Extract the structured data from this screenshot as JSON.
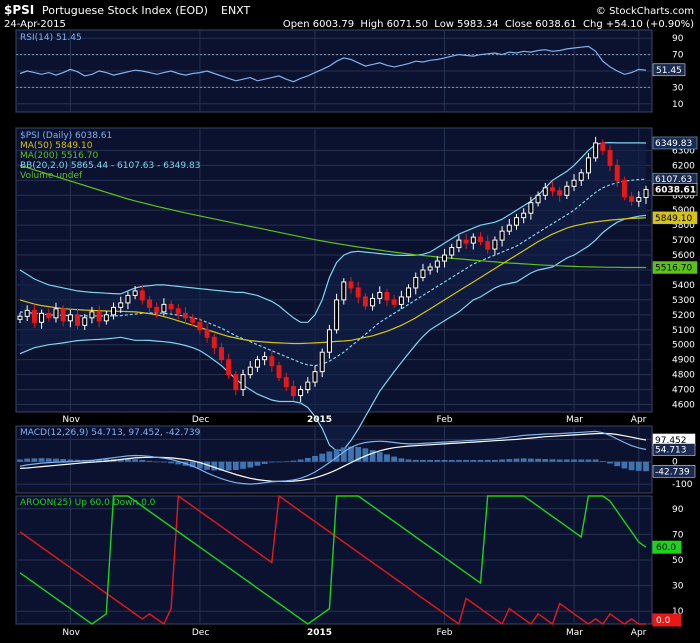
{
  "header": {
    "symbol": "$PSI",
    "name": "Portuguese Stock Index (EOD)",
    "exchange": "ENXT",
    "date": "24-Apr-2015",
    "quote": "Open 6003.79  High 6071.50  Low 5983.34  Close 6038.61  Chg +54.10 (+0.90%)",
    "quote_arrow": "▲",
    "watermark": "© StockCharts.com"
  },
  "colors": {
    "background": "#000000",
    "panel_shade": "#0b1230",
    "grid": "#26324f",
    "up_candle": "#ffffff",
    "down_candle": "#e81818",
    "ma50": "#d6c21a",
    "ma200": "#5cc21a",
    "bollinger": "#7fd6ee",
    "bb_mid": "#7fd6ee",
    "rsi": "#7fb2ef",
    "macd": "#7fb2ef",
    "signal": "#ffffff",
    "aroon_up": "#1bd41b",
    "aroon_down": "#e81818"
  },
  "chart_data": [
    {
      "type": "line",
      "panel": "rsi",
      "legend": "RSI(14) 51.45",
      "ylim": [
        0,
        100
      ],
      "y_ticks": [
        10,
        30,
        50,
        70,
        90
      ],
      "reference_lines": [
        30,
        70
      ],
      "last_value_label": "51.45",
      "series": [
        {
          "name": "RSI(14)",
          "values": [
            47,
            50,
            48,
            46,
            48,
            45,
            48,
            52,
            49,
            44,
            46,
            50,
            48,
            45,
            47,
            49,
            51,
            50,
            48,
            46,
            48,
            50,
            47,
            45,
            47,
            48,
            50,
            47,
            44,
            41,
            38,
            40,
            42,
            38,
            40,
            42,
            44,
            40,
            37,
            41,
            44,
            48,
            52,
            56,
            62,
            66,
            64,
            60,
            56,
            58,
            60,
            57,
            55,
            57,
            59,
            62,
            61,
            63,
            64,
            66,
            68,
            70,
            69,
            68,
            70,
            71,
            72,
            70,
            73,
            72,
            74,
            73,
            75,
            76,
            74,
            75,
            77,
            78,
            79,
            80,
            74,
            62,
            55,
            50,
            46,
            48,
            52,
            51
          ]
        }
      ]
    },
    {
      "type": "candlestick",
      "panel": "price",
      "title": "$PSI Portuguese Stock Index (EOD) ENXT",
      "legend": [
        "$PSI (Daily) 6038.61",
        "MA(50) 5849.10",
        "MA(200) 5516.70",
        "BB(20,2.0) 5865.44 - 6107.63 - 6349.83",
        "Volume undef"
      ],
      "ylim": [
        4550,
        6450
      ],
      "y_ticks": [
        4600,
        4700,
        4800,
        4900,
        5000,
        5100,
        5200,
        5300,
        5400,
        5500,
        5600,
        5700,
        5800,
        5900,
        6000,
        6100,
        6200,
        6300
      ],
      "x_labels": [
        "Nov",
        "Dec",
        "2015",
        "Feb",
        "Mar",
        "Apr"
      ],
      "last_value_labels": {
        "close": "6038.61",
        "bb_upper": "6349.83",
        "bb_mid": "6107.63",
        "ma50": "5849.10",
        "ma200": "5516.70"
      },
      "closes": [
        5190,
        5230,
        5150,
        5210,
        5180,
        5240,
        5160,
        5200,
        5130,
        5180,
        5220,
        5160,
        5200,
        5250,
        5280,
        5330,
        5360,
        5300,
        5250,
        5220,
        5270,
        5240,
        5210,
        5180,
        5150,
        5100,
        5050,
        4980,
        4900,
        4800,
        4700,
        4800,
        4850,
        4900,
        4920,
        4860,
        4780,
        4720,
        4660,
        4700,
        4750,
        4820,
        4950,
        5100,
        5300,
        5420,
        5380,
        5320,
        5260,
        5310,
        5350,
        5300,
        5270,
        5320,
        5380,
        5450,
        5500,
        5520,
        5560,
        5600,
        5650,
        5700,
        5680,
        5720,
        5690,
        5640,
        5700,
        5760,
        5800,
        5850,
        5880,
        5950,
        6000,
        6050,
        6030,
        6000,
        6060,
        6100,
        6150,
        6250,
        6350,
        6300,
        6200,
        6100,
        5990,
        5960,
        5985,
        6038.61
      ],
      "ma50": [
        5300,
        5285,
        5272,
        5262,
        5255,
        5248,
        5242,
        5238,
        5235,
        5232,
        5230,
        5228,
        5226,
        5225,
        5224,
        5222,
        5220,
        5215,
        5208,
        5200,
        5188,
        5175,
        5160,
        5145,
        5130,
        5115,
        5100,
        5085,
        5070,
        5055,
        5045,
        5035,
        5028,
        5022,
        5018,
        5015,
        5012,
        5010,
        5008,
        5008,
        5010,
        5012,
        5015,
        5018,
        5022,
        5025,
        5030,
        5040,
        5050,
        5060,
        5075,
        5090,
        5110,
        5130,
        5155,
        5180,
        5210,
        5240,
        5270,
        5300,
        5330,
        5360,
        5390,
        5420,
        5450,
        5480,
        5510,
        5540,
        5570,
        5600,
        5630,
        5660,
        5690,
        5715,
        5740,
        5760,
        5780,
        5795,
        5805,
        5815,
        5822,
        5828,
        5834,
        5838,
        5842,
        5845,
        5847,
        5849.1
      ],
      "ma200": [
        6200,
        6185,
        6170,
        6155,
        6140,
        6125,
        6110,
        6095,
        6080,
        6065,
        6050,
        6035,
        6020,
        6005,
        5990,
        5975,
        5962,
        5950,
        5938,
        5926,
        5915,
        5904,
        5893,
        5882,
        5872,
        5862,
        5852,
        5842,
        5832,
        5822,
        5812,
        5802,
        5792,
        5782,
        5772,
        5762,
        5752,
        5742,
        5732,
        5722,
        5712,
        5703,
        5694,
        5685,
        5677,
        5669,
        5661,
        5654,
        5647,
        5640,
        5633,
        5626,
        5620,
        5614,
        5608,
        5602,
        5597,
        5592,
        5587,
        5582,
        5578,
        5574,
        5570,
        5566,
        5562,
        5558,
        5554,
        5550,
        5547,
        5544,
        5541,
        5538,
        5535,
        5532,
        5530,
        5528,
        5526,
        5524,
        5522,
        5521,
        5520,
        5519,
        5518,
        5518,
        5517,
        5517,
        5516.8,
        5516.7
      ],
      "bb_upper": [
        5500,
        5470,
        5440,
        5420,
        5400,
        5390,
        5380,
        5370,
        5360,
        5355,
        5350,
        5348,
        5345,
        5342,
        5340,
        5360,
        5380,
        5390,
        5395,
        5400,
        5400,
        5395,
        5390,
        5385,
        5380,
        5375,
        5370,
        5365,
        5360,
        5355,
        5350,
        5350,
        5340,
        5330,
        5310,
        5290,
        5260,
        5220,
        5180,
        5150,
        5150,
        5200,
        5300,
        5450,
        5550,
        5600,
        5620,
        5625,
        5620,
        5615,
        5610,
        5605,
        5600,
        5598,
        5598,
        5600,
        5605,
        5620,
        5650,
        5680,
        5710,
        5740,
        5760,
        5780,
        5800,
        5810,
        5820,
        5840,
        5870,
        5900,
        5930,
        5960,
        6000,
        6050,
        6100,
        6130,
        6160,
        6200,
        6250,
        6300,
        6340,
        6350,
        6352,
        6350,
        6350,
        6350,
        6350,
        6349.83
      ],
      "bb_mid": [
        5220,
        5215,
        5210,
        5205,
        5200,
        5198,
        5196,
        5195,
        5194,
        5193,
        5192,
        5192,
        5192,
        5193,
        5195,
        5200,
        5205,
        5210,
        5212,
        5212,
        5210,
        5205,
        5198,
        5190,
        5180,
        5168,
        5150,
        5130,
        5110,
        5085,
        5060,
        5040,
        5020,
        5000,
        4980,
        4960,
        4940,
        4920,
        4900,
        4880,
        4865,
        4860,
        4870,
        4890,
        4920,
        4950,
        4990,
        5030,
        5070,
        5110,
        5150,
        5180,
        5210,
        5240,
        5270,
        5300,
        5330,
        5360,
        5390,
        5420,
        5450,
        5480,
        5510,
        5540,
        5560,
        5580,
        5600,
        5620,
        5640,
        5660,
        5690,
        5720,
        5750,
        5780,
        5810,
        5840,
        5870,
        5900,
        5940,
        5980,
        6020,
        6050,
        6070,
        6085,
        6095,
        6100,
        6105,
        6107.63
      ],
      "bb_lower": [
        4940,
        4960,
        4980,
        4990,
        5000,
        5006,
        5012,
        5020,
        5028,
        5031,
        5034,
        5036,
        5039,
        5044,
        5050,
        5040,
        5030,
        5030,
        5029,
        5024,
        5020,
        5015,
        5006,
        4995,
        4980,
        4961,
        4930,
        4895,
        4860,
        4815,
        4770,
        4730,
        4700,
        4670,
        4650,
        4630,
        4620,
        4620,
        4620,
        4610,
        4580,
        4520,
        4440,
        4330,
        4290,
        4300,
        4360,
        4435,
        4520,
        4605,
        4690,
        4755,
        4820,
        4882,
        4942,
        5000,
        5055,
        5100,
        5130,
        5160,
        5190,
        5220,
        5260,
        5300,
        5320,
        5350,
        5380,
        5400,
        5410,
        5420,
        5450,
        5480,
        5500,
        5510,
        5520,
        5550,
        5580,
        5600,
        5630,
        5660,
        5700,
        5750,
        5788,
        5820,
        5840,
        5850,
        5860,
        5865.44
      ]
    },
    {
      "type": "line",
      "panel": "macd",
      "legend": "MACD(12,26,9) 54.713, 97.452, -42.739",
      "ylim": [
        -140,
        160
      ],
      "y_ticks": [
        -100,
        0,
        100
      ],
      "last_value_labels": {
        "macd": "54.713",
        "signal": "97.452",
        "histogram": "-42.739"
      },
      "series": [
        {
          "name": "MACD",
          "values": [
            -20,
            -14,
            -10,
            -6,
            -4,
            -2,
            -1,
            0,
            2,
            4,
            6,
            10,
            14,
            18,
            22,
            26,
            28,
            27,
            24,
            20,
            16,
            10,
            2,
            -8,
            -20,
            -34,
            -50,
            -64,
            -76,
            -86,
            -94,
            -98,
            -100,
            -98,
            -94,
            -90,
            -88,
            -86,
            -82,
            -74,
            -62,
            -46,
            -26,
            -4,
            20,
            44,
            64,
            78,
            86,
            90,
            92,
            90,
            86,
            82,
            80,
            80,
            82,
            84,
            86,
            88,
            90,
            92,
            94,
            96,
            98,
            100,
            102,
            106,
            110,
            114,
            118,
            120,
            122,
            124,
            125,
            126,
            128,
            130,
            132,
            134,
            136,
            130,
            118,
            102,
            86,
            72,
            62,
            54.713
          ]
        },
        {
          "name": "Signal",
          "values": [
            -30,
            -28,
            -25,
            -22,
            -19,
            -16,
            -13,
            -10,
            -7,
            -4,
            -2,
            0,
            3,
            6,
            10,
            14,
            17,
            19,
            20,
            20,
            19,
            17,
            14,
            10,
            4,
            -4,
            -14,
            -25,
            -36,
            -47,
            -57,
            -66,
            -74,
            -80,
            -84,
            -87,
            -88,
            -88,
            -87,
            -84,
            -79,
            -72,
            -62,
            -50,
            -36,
            -20,
            -4,
            12,
            26,
            38,
            49,
            57,
            63,
            67,
            70,
            72,
            74,
            76,
            78,
            80,
            82,
            84,
            86,
            88,
            90,
            92,
            94,
            96,
            98,
            100,
            103,
            106,
            109,
            112,
            114,
            116,
            118,
            120,
            122,
            124,
            126,
            127,
            126,
            122,
            116,
            110,
            103,
            97.452
          ]
        }
      ]
    },
    {
      "type": "line",
      "panel": "aroon",
      "legend": "AROON(25) Up 60.0 Down 0.0",
      "ylim": [
        0,
        100
      ],
      "y_ticks": [
        10,
        30,
        50,
        70,
        90
      ],
      "last_value_labels": {
        "up": "60.0",
        "down": "0.0"
      },
      "series": [
        {
          "name": "Up",
          "values": [
            40,
            36,
            32,
            28,
            24,
            20,
            16,
            12,
            8,
            4,
            0,
            4,
            8,
            100,
            100,
            100,
            96,
            92,
            88,
            84,
            80,
            76,
            72,
            68,
            64,
            60,
            56,
            52,
            48,
            44,
            40,
            36,
            32,
            28,
            24,
            20,
            16,
            12,
            8,
            4,
            0,
            4,
            8,
            12,
            100,
            100,
            100,
            100,
            96,
            92,
            88,
            84,
            80,
            76,
            72,
            68,
            64,
            60,
            56,
            52,
            48,
            44,
            40,
            36,
            32,
            100,
            100,
            100,
            100,
            100,
            100,
            96,
            92,
            88,
            84,
            80,
            76,
            72,
            68,
            100,
            100,
            100,
            96,
            88,
            80,
            72,
            64,
            60
          ]
        },
        {
          "name": "Down",
          "values": [
            72,
            68,
            64,
            60,
            56,
            52,
            48,
            44,
            40,
            36,
            32,
            28,
            24,
            20,
            16,
            12,
            8,
            4,
            8,
            4,
            0,
            12,
            100,
            96,
            92,
            88,
            84,
            80,
            76,
            72,
            68,
            64,
            60,
            56,
            52,
            48,
            100,
            96,
            92,
            88,
            84,
            80,
            76,
            72,
            68,
            64,
            60,
            56,
            52,
            48,
            44,
            40,
            36,
            32,
            28,
            24,
            20,
            16,
            12,
            8,
            4,
            0,
            20,
            16,
            12,
            8,
            4,
            0,
            12,
            8,
            4,
            0,
            8,
            4,
            0,
            16,
            12,
            8,
            4,
            0,
            4,
            0,
            8,
            4,
            0,
            4,
            0,
            0
          ]
        }
      ]
    }
  ]
}
